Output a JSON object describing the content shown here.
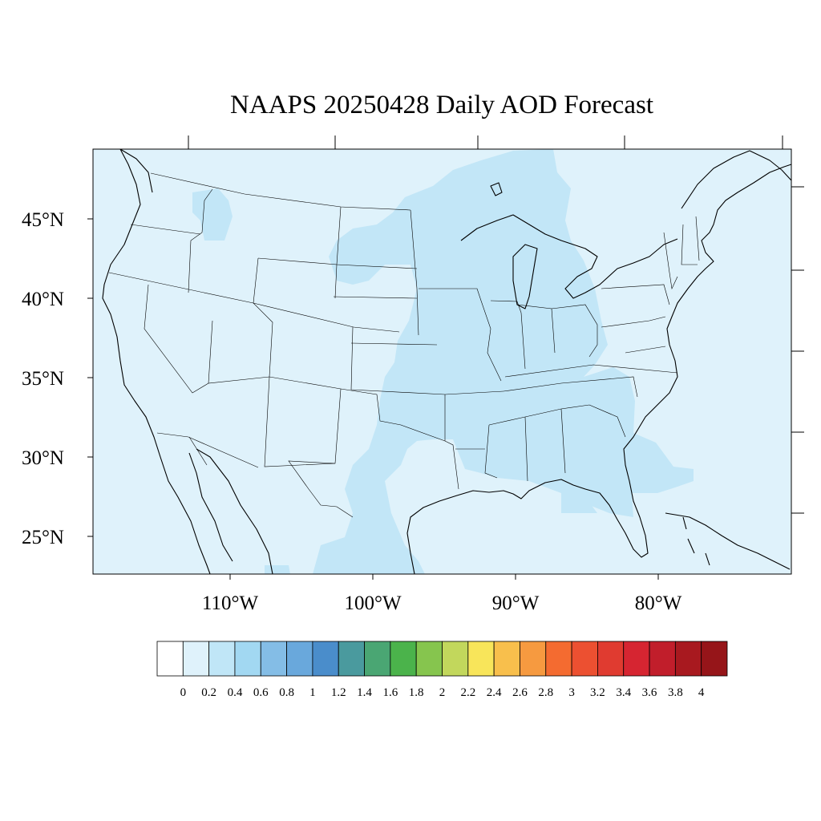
{
  "title": "NAAPS 20250428 Daily AOD Forecast",
  "colors": {
    "background_aod": "#dff2fb",
    "elevated_aod": "#c2e6f7"
  },
  "map_data": {
    "projection": "cylindrical",
    "lon_range": [
      -119,
      -70
    ],
    "lat_range": [
      22.7,
      49.5
    ],
    "lat_labels": [
      "45°N",
      "40°N",
      "35°N",
      "30°N",
      "25°N"
    ],
    "lon_labels": [
      "110°W",
      "100°W",
      "90°W",
      "80°W"
    ],
    "field": "Aerosol Optical Depth",
    "dominant_range": "0.2 - 0.4 over the Great Plains, Midwest, Great Lakes and Southeast; 0 - 0.2 elsewhere"
  },
  "colorbar": {
    "labels": [
      "0",
      "0.2",
      "0.4",
      "0.6",
      "0.8",
      "1",
      "1.2",
      "1.4",
      "1.6",
      "1.8",
      "2",
      "2.2",
      "2.4",
      "2.6",
      "2.8",
      "3",
      "3.2",
      "3.4",
      "3.6",
      "3.8",
      "4"
    ],
    "colors": [
      "#ffffff",
      "#dff2fb",
      "#c0e6f7",
      "#a2d8f2",
      "#84bde6",
      "#69a8dc",
      "#4a8dcb",
      "#4a9a9e",
      "#4aa673",
      "#4bb34b",
      "#86c54e",
      "#c2d75c",
      "#f8e55a",
      "#f8bf4c",
      "#f69a40",
      "#f46b30",
      "#ec5031",
      "#e03b30",
      "#d62531",
      "#c11e2b",
      "#a8191f",
      "#961519"
    ]
  }
}
